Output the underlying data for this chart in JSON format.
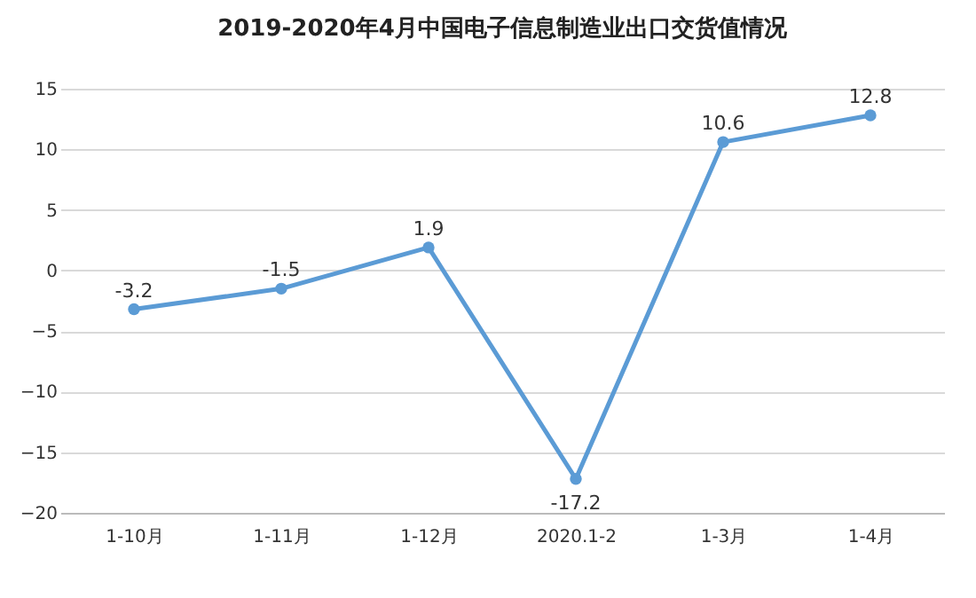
{
  "chart_data": {
    "type": "line",
    "title": "2019-2020年4月中国电子信息制造业出口交货值情况",
    "categories": [
      "1-10月",
      "1-11月",
      "1-12月",
      "2020.1-2",
      "1-3月",
      "1-4月"
    ],
    "values": [
      -3.2,
      -1.5,
      1.9,
      -17.2,
      10.6,
      12.8
    ],
    "color": "#5b9bd5",
    "ylim": [
      -20,
      15
    ],
    "yticks": [
      -20,
      -15,
      -10,
      -5,
      0,
      5,
      10,
      15
    ],
    "grid": "y",
    "marker": "circle",
    "data_labels": true
  }
}
